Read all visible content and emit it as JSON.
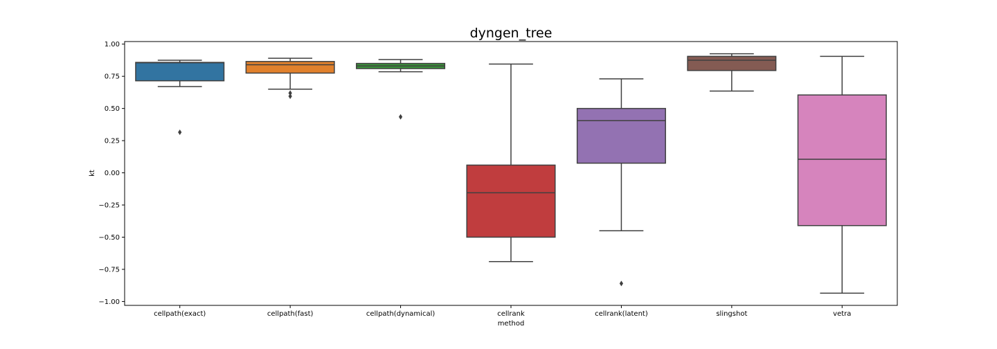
{
  "chart_data": {
    "type": "box",
    "title": "dyngen_tree",
    "xlabel": "method",
    "ylabel": "kt",
    "ylim": [
      -1.03,
      1.02
    ],
    "yticks": [
      1.0,
      0.75,
      0.5,
      0.25,
      0.0,
      -0.25,
      -0.5,
      -0.75,
      -1.0
    ],
    "ytick_labels": [
      "1.00",
      "0.75",
      "0.50",
      "0.25",
      "0.00",
      "−0.25",
      "−0.50",
      "−0.75",
      "−1.00"
    ],
    "grid": false,
    "categories": [
      "cellpath(exact)",
      "cellpath(fast)",
      "cellpath(dynamical)",
      "cellrank",
      "cellrank(latent)",
      "slingshot",
      "vetra"
    ],
    "series": [
      {
        "category": "cellpath(exact)",
        "color": "#3274a1",
        "whisker_low": 0.67,
        "q1": 0.715,
        "median": 0.855,
        "q3": 0.858,
        "whisker_high": 0.875,
        "outliers": [
          0.315
        ]
      },
      {
        "category": "cellpath(fast)",
        "color": "#e1812c",
        "whisker_low": 0.65,
        "q1": 0.775,
        "median": 0.84,
        "q3": 0.865,
        "whisker_high": 0.89,
        "outliers": [
          0.62,
          0.595
        ]
      },
      {
        "category": "cellpath(dynamical)",
        "color": "#3a923a",
        "whisker_low": 0.785,
        "q1": 0.81,
        "median": 0.83,
        "q3": 0.85,
        "whisker_high": 0.88,
        "outliers": [
          0.435
        ]
      },
      {
        "category": "cellrank",
        "color": "#c03d3e",
        "whisker_low": -0.69,
        "q1": -0.5,
        "median": -0.155,
        "q3": 0.06,
        "whisker_high": 0.845,
        "outliers": []
      },
      {
        "category": "cellrank(latent)",
        "color": "#9372b2",
        "whisker_low": -0.45,
        "q1": 0.075,
        "median": 0.405,
        "q3": 0.5,
        "whisker_high": 0.73,
        "outliers": [
          -0.86
        ]
      },
      {
        "category": "slingshot",
        "color": "#845b53",
        "whisker_low": 0.635,
        "q1": 0.795,
        "median": 0.875,
        "q3": 0.905,
        "whisker_high": 0.925,
        "outliers": []
      },
      {
        "category": "vetra",
        "color": "#d684bd",
        "whisker_low": -0.935,
        "q1": -0.41,
        "median": 0.105,
        "q3": 0.605,
        "whisker_high": 0.905,
        "outliers": []
      }
    ]
  }
}
